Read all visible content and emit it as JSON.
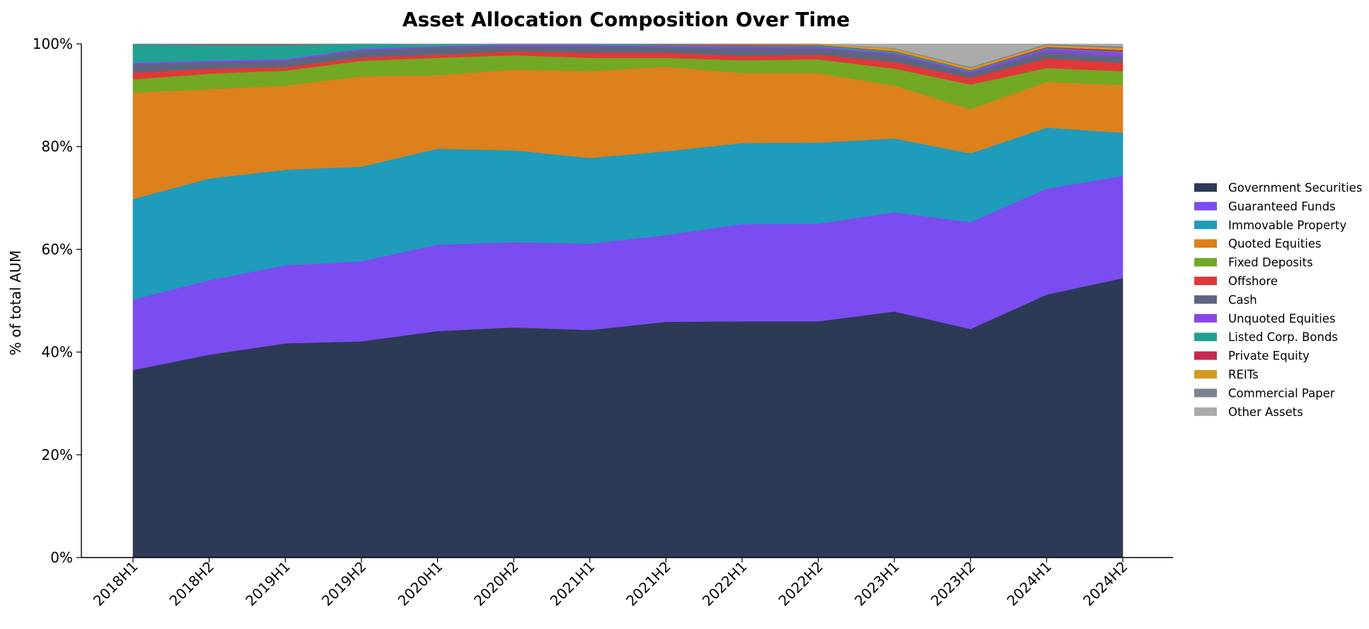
{
  "chart_data": {
    "type": "area",
    "stacked": true,
    "normalized": true,
    "title": "Asset Allocation Composition Over Time",
    "xlabel": "",
    "ylabel": "% of total AUM",
    "ylim": [
      0,
      100
    ],
    "yticks": [
      "0%",
      "20%",
      "40%",
      "60%",
      "80%",
      "100%"
    ],
    "categories": [
      "2018H1",
      "2018H2",
      "2019H1",
      "2019H2",
      "2020H1",
      "2020H2",
      "2021H1",
      "2021H2",
      "2022H1",
      "2022H2",
      "2023H1",
      "2023H2",
      "2024H1",
      "2024H2"
    ],
    "legend_position": "right",
    "grid": false,
    "series": [
      {
        "name": "Government Securities",
        "color": "#2c3a56",
        "values": [
          36.5,
          39.5,
          41.7,
          42.1,
          44.1,
          44.8,
          44.3,
          45.9,
          46.0,
          46.0,
          47.9,
          44.5,
          51.2,
          54.4
        ]
      },
      {
        "name": "Guaranteed Funds",
        "color": "#7b4cf0",
        "values": [
          13.7,
          14.5,
          15.2,
          15.6,
          16.8,
          16.6,
          16.8,
          16.9,
          18.9,
          19.0,
          19.3,
          20.8,
          20.6,
          19.9
        ]
      },
      {
        "name": "Immovable Property",
        "color": "#1f9bbb",
        "values": [
          19.6,
          19.8,
          18.6,
          18.4,
          18.7,
          17.9,
          16.7,
          16.3,
          15.8,
          15.8,
          14.4,
          13.4,
          11.9,
          8.4
        ]
      },
      {
        "name": "Quoted Equities",
        "color": "#dc811b",
        "values": [
          20.7,
          17.4,
          16.4,
          17.6,
          14.3,
          15.7,
          16.9,
          16.5,
          13.6,
          13.5,
          10.3,
          8.6,
          8.9,
          9.3
        ]
      },
      {
        "name": "Fixed Deposits",
        "color": "#72a824",
        "values": [
          2.6,
          3.0,
          2.9,
          3.0,
          3.4,
          2.8,
          2.6,
          1.7,
          2.5,
          2.7,
          3.3,
          4.8,
          2.7,
          2.7
        ]
      },
      {
        "name": "Offshore",
        "color": "#e03838",
        "values": [
          1.3,
          1.0,
          0.7,
          0.7,
          0.6,
          0.8,
          1.0,
          1.0,
          0.9,
          0.9,
          1.3,
          1.3,
          1.9,
          1.6
        ]
      },
      {
        "name": "Cash",
        "color": "#5c6680",
        "values": [
          1.6,
          1.2,
          1.2,
          1.3,
          1.4,
          1.0,
          1.2,
          1.0,
          1.4,
          1.2,
          1.4,
          0.9,
          1.3,
          1.2
        ]
      },
      {
        "name": "Unquoted Equities",
        "color": "#8b44e6",
        "values": [
          0.3,
          0.3,
          0.3,
          0.3,
          0.2,
          0.3,
          0.3,
          0.3,
          0.3,
          0.3,
          0.3,
          0.3,
          0.5,
          0.8
        ]
      },
      {
        "name": "Listed Corp. Bonds",
        "color": "#21a193",
        "values": [
          3.6,
          3.1,
          2.8,
          1.0,
          0.4,
          0.1,
          0.2,
          0.2,
          0.2,
          0.3,
          0.3,
          0.2,
          0.2,
          0.2
        ]
      },
      {
        "name": "Private Equity",
        "color": "#c82850",
        "values": [
          0.0,
          0.1,
          0.1,
          0.0,
          0.0,
          0.0,
          0.0,
          0.1,
          0.2,
          0.1,
          0.1,
          0.1,
          0.2,
          0.3
        ]
      },
      {
        "name": "REITs",
        "color": "#d39a22",
        "values": [
          0.0,
          0.0,
          0.0,
          0.0,
          0.0,
          0.0,
          0.0,
          0.0,
          0.1,
          0.2,
          0.5,
          0.4,
          0.4,
          0.4
        ]
      },
      {
        "name": "Commercial Paper",
        "color": "#7d8290",
        "values": [
          0.1,
          0.1,
          0.1,
          0.0,
          0.1,
          0.0,
          0.0,
          0.1,
          0.1,
          0.0,
          0.1,
          0.2,
          0.2,
          0.3
        ]
      },
      {
        "name": "Other Assets",
        "color": "#aaaaaa",
        "values": [
          0.0,
          0.0,
          0.0,
          0.0,
          0.0,
          0.0,
          0.0,
          0.0,
          0.0,
          0.0,
          0.8,
          4.5,
          0.0,
          0.5
        ]
      }
    ]
  }
}
